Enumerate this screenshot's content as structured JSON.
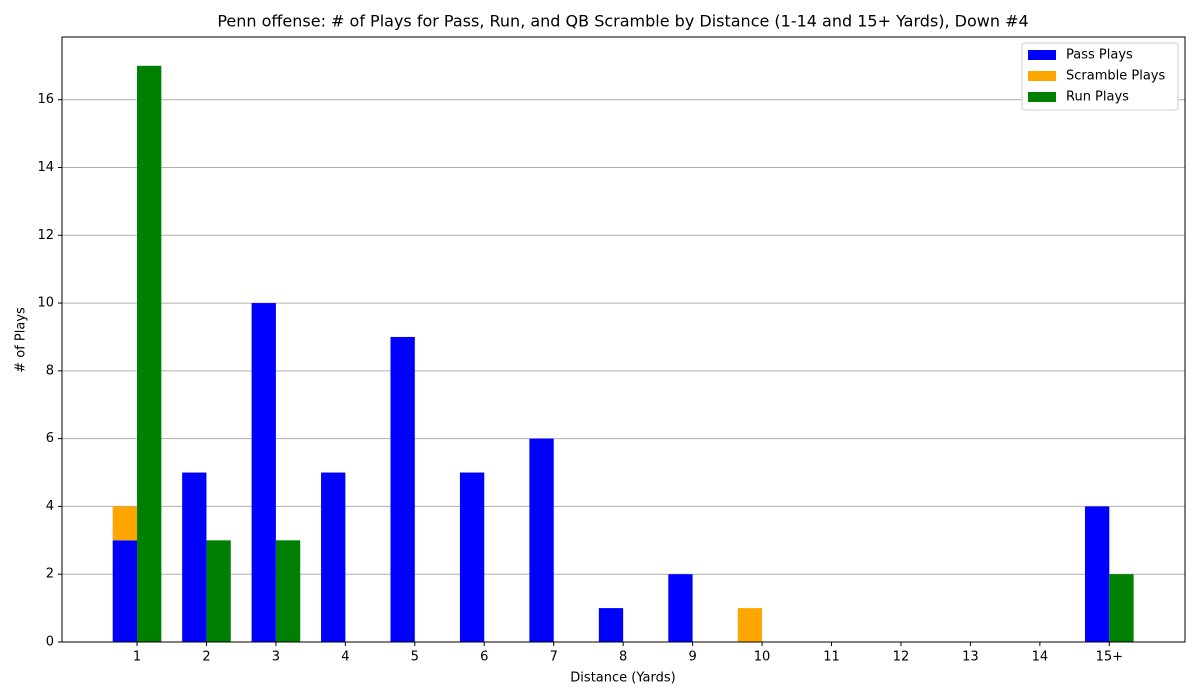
{
  "chart_data": {
    "type": "bar",
    "title": "Penn offense: # of Plays for Pass, Run, and QB Scramble by Distance (1-14 and 15+ Yards), Down #4",
    "x_label": "Distance (Yards)",
    "y_label": "# of Plays",
    "categories": [
      "1",
      "2",
      "3",
      "4",
      "5",
      "6",
      "7",
      "8",
      "9",
      "10",
      "11",
      "12",
      "13",
      "14",
      "15+"
    ],
    "series": [
      {
        "name": "Pass Plays",
        "color": "#0000ff",
        "values": [
          3,
          5,
          10,
          5,
          9,
          5,
          6,
          1,
          2,
          0,
          0,
          0,
          0,
          0,
          4
        ]
      },
      {
        "name": "Scramble Plays",
        "color": "#ffa500",
        "values": [
          1,
          0,
          0,
          0,
          0,
          0,
          0,
          0,
          0,
          1,
          0,
          0,
          0,
          0,
          0
        ]
      },
      {
        "name": "Run Plays",
        "color": "#008000",
        "values": [
          17,
          3,
          3,
          0,
          0,
          0,
          0,
          0,
          0,
          0,
          0,
          0,
          0,
          0,
          2
        ]
      }
    ],
    "ylim": [
      0,
      17.85
    ],
    "yticks": [
      0,
      2,
      4,
      6,
      8,
      10,
      12,
      14,
      16
    ],
    "grid": true,
    "legend": "upper right"
  }
}
